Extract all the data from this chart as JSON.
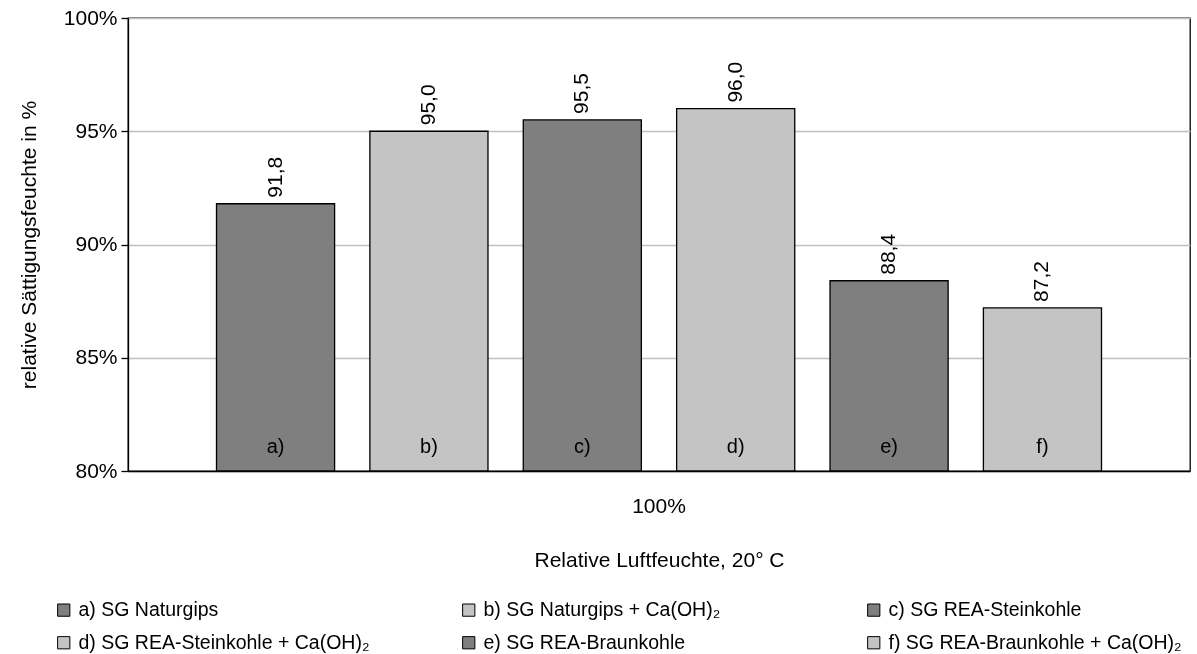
{
  "chart_data": {
    "type": "bar",
    "categories": [
      "100%"
    ],
    "xlabel": "Relative Luftfeuchte, 20° C",
    "ylabel": "relative Sättigungsfeuchte in %",
    "series": [
      {
        "name": "a) SG Naturgips",
        "color": "#7f7f7f",
        "values": [
          91.8
        ],
        "value_labels": [
          "91,8"
        ]
      },
      {
        "name": "b) SG Naturgips + Ca(OH)₂",
        "color": "#c4c4c4",
        "values": [
          95.0
        ],
        "value_labels": [
          "95,0"
        ]
      },
      {
        "name": "c) SG REA-Steinkohle",
        "color": "#7f7f7f",
        "values": [
          95.5
        ],
        "value_labels": [
          "95,5"
        ]
      },
      {
        "name": "d) SG REA-Steinkohle + Ca(OH)₂",
        "color": "#c4c4c4",
        "values": [
          96.0
        ],
        "value_labels": [
          "96,0"
        ]
      },
      {
        "name": "e) SG REA-Braunkohle",
        "color": "#7f7f7f",
        "values": [
          88.4
        ],
        "value_labels": [
          "88,4"
        ]
      },
      {
        "name": "f) SG REA-Braunkohle + Ca(OH)₂",
        "color": "#c4c4c4",
        "values": [
          87.2
        ],
        "value_labels": [
          "87,2"
        ]
      }
    ],
    "ylim": [
      80,
      100
    ],
    "yticks": [
      {
        "value": 80,
        "label": "80%"
      },
      {
        "value": 85,
        "label": "85%"
      },
      {
        "value": 90,
        "label": "90%"
      },
      {
        "value": 95,
        "label": "95%"
      },
      {
        "value": 100,
        "label": "100%"
      }
    ],
    "grid": "y",
    "legend": "bottom",
    "annotations": [
      "a)",
      "b)",
      "c)",
      "d)",
      "e)",
      "f)"
    ]
  }
}
